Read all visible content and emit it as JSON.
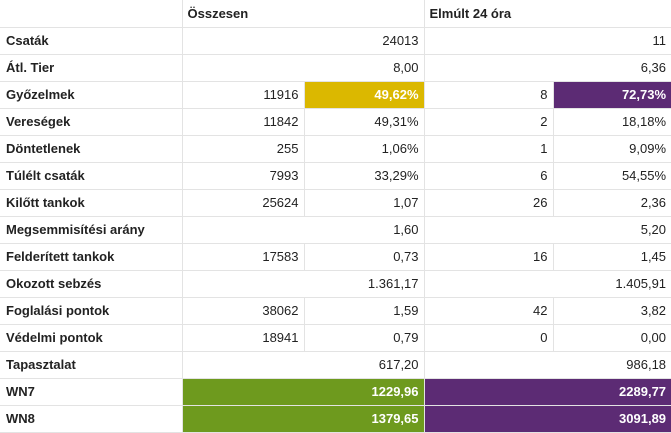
{
  "headers": {
    "total": "Összesen",
    "last24": "Elmúlt 24 óra"
  },
  "rows": [
    {
      "label": "Csaták",
      "total_value": "24013",
      "last24_value": "11"
    },
    {
      "label": "Átl. Tier",
      "total_value": "8,00",
      "last24_value": "6,36"
    },
    {
      "label": "Győzelmek",
      "total_count": "11916",
      "total_pct": "49,62%",
      "last24_count": "8",
      "last24_pct": "72,73%"
    },
    {
      "label": "Vereségek",
      "total_count": "11842",
      "total_pct": "49,31%",
      "last24_count": "2",
      "last24_pct": "18,18%"
    },
    {
      "label": "Döntetlenek",
      "total_count": "255",
      "total_pct": "1,06%",
      "last24_count": "1",
      "last24_pct": "9,09%"
    },
    {
      "label": "Túlélt csaták",
      "total_count": "7993",
      "total_pct": "33,29%",
      "last24_count": "6",
      "last24_pct": "54,55%"
    },
    {
      "label": "Kilőtt tankok",
      "total_count": "25624",
      "total_pct": "1,07",
      "last24_count": "26",
      "last24_pct": "2,36"
    },
    {
      "label": "Megsemmisítési arány",
      "total_value": "1,60",
      "last24_value": "5,20"
    },
    {
      "label": "Felderített tankok",
      "total_count": "17583",
      "total_pct": "0,73",
      "last24_count": "16",
      "last24_pct": "1,45"
    },
    {
      "label": "Okozott sebzés",
      "total_value": "1.361,17",
      "last24_value": "1.405,91"
    },
    {
      "label": "Foglalási pontok",
      "total_count": "38062",
      "total_pct": "1,59",
      "last24_count": "42",
      "last24_pct": "3,82"
    },
    {
      "label": "Védelmi pontok",
      "total_count": "18941",
      "total_pct": "0,79",
      "last24_count": "0",
      "last24_pct": "0,00"
    },
    {
      "label": "Tapasztalat",
      "total_value": "617,20",
      "last24_value": "986,18"
    },
    {
      "label": "WN7",
      "total_value": "1229,96",
      "last24_value": "2289,77"
    },
    {
      "label": "WN8",
      "total_value": "1379,65",
      "last24_value": "3091,89"
    }
  ],
  "colors": {
    "yellow": "#dbb800",
    "purple": "#5c2b74",
    "green": "#6e9a1e"
  }
}
